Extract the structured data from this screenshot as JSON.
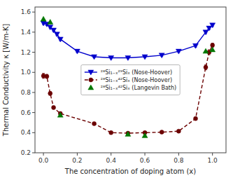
{
  "chart_data": {
    "type": "line",
    "xlabel": "The concentration of doping atom (x)",
    "ylabel": "Thermal Conductivity κ [W/m-K]",
    "xlim": [
      -0.05,
      1.08
    ],
    "ylim": [
      0.2,
      1.65
    ],
    "xticks": [
      {
        "value": 0.0,
        "label": "0.0"
      },
      0.2,
      0.4,
      0.6,
      0.8,
      {
        "value": 1.0,
        "label": "1.0"
      }
    ],
    "yticks": [
      0.2,
      0.4,
      0.6,
      0.8,
      {
        "value": 1.0,
        "label": "1.0"
      },
      1.2,
      1.4,
      1.6
    ],
    "legend": "center",
    "series": [
      {
        "name": "²⁸Si₁₋ₓ²⁹Siₓ (Nose-Hoover)",
        "color": "#0000cc",
        "marker": "triangle-down",
        "line_style": "solid",
        "x": [
          0.0,
          0.02,
          0.04,
          0.06,
          0.08,
          0.1,
          0.2,
          0.3,
          0.4,
          0.5,
          0.6,
          0.7,
          0.8,
          0.9,
          0.96,
          0.98,
          1.0
        ],
        "values": [
          1.49,
          1.48,
          1.45,
          1.42,
          1.38,
          1.33,
          1.21,
          1.155,
          1.145,
          1.145,
          1.155,
          1.17,
          1.21,
          1.265,
          1.4,
          1.44,
          1.47
        ],
        "errors": [
          0.015,
          0.015,
          0.015,
          0.015,
          0.015,
          0.015,
          0.012,
          0.01,
          0.01,
          0.01,
          0.01,
          0.01,
          0.012,
          0.015,
          0.015,
          0.015,
          0.015
        ]
      },
      {
        "name": "²⁸Si₁₋ₓ⁴²Siₓ (Nose-Hoover)",
        "color": "#6b0000",
        "marker": "circle",
        "line_style": "dashed",
        "x": [
          0.0,
          0.02,
          0.04,
          0.06,
          0.1,
          0.3,
          0.4,
          0.5,
          0.6,
          0.7,
          0.8,
          0.9,
          0.96,
          0.98,
          1.0
        ],
        "values": [
          0.965,
          0.96,
          0.79,
          0.65,
          0.59,
          0.49,
          0.4,
          0.395,
          0.4,
          0.405,
          0.415,
          0.54,
          1.05,
          1.2,
          1.27
        ],
        "errors": [
          0.025,
          0.02,
          0.018,
          0.015,
          0.015,
          0.012,
          0.01,
          0.01,
          0.01,
          0.01,
          0.012,
          0.015,
          0.025,
          0.025,
          0.02
        ]
      },
      {
        "name": "²⁸Si₁₋ₓ⁴²Siₓ (Langevin Bath)",
        "color": "#007700",
        "marker": "triangle-up",
        "type": "scatter",
        "x": [
          0.0,
          0.04,
          0.1,
          0.5,
          0.6,
          0.96,
          1.0
        ],
        "values": [
          1.53,
          1.5,
          0.575,
          0.385,
          0.37,
          1.21,
          1.225
        ]
      }
    ]
  }
}
